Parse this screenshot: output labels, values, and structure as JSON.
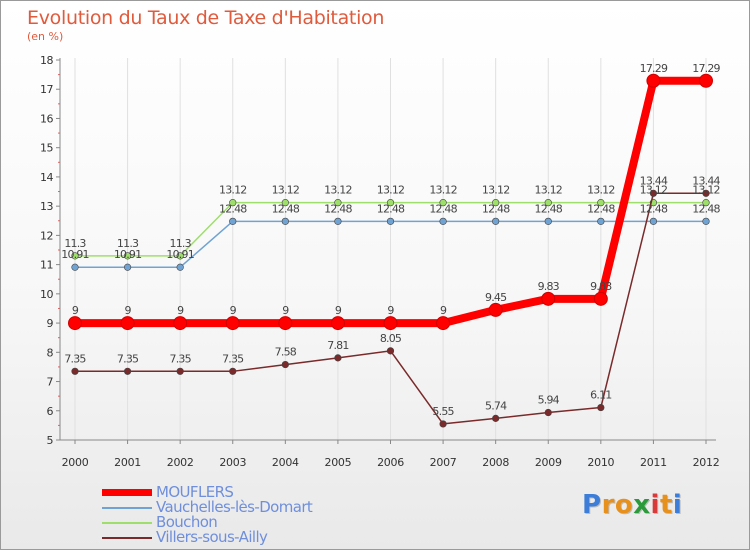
{
  "chart_data": {
    "type": "line",
    "title": "Evolution du Taux de Taxe d'Habitation",
    "subtitle": "(en %)",
    "x": [
      "2000",
      "2001",
      "2002",
      "2003",
      "2004",
      "2005",
      "2006",
      "2007",
      "2008",
      "2009",
      "2010",
      "2011",
      "2012"
    ],
    "ylim": [
      5,
      18
    ],
    "yticks": [
      5,
      6,
      7,
      8,
      9,
      10,
      11,
      12,
      13,
      14,
      15,
      16,
      17,
      18
    ],
    "series": [
      {
        "name": "MOUFLERS",
        "color": "#ff0000",
        "values": [
          9,
          9,
          9,
          9,
          9,
          9,
          9,
          9,
          9.45,
          9.83,
          9.83,
          17.29,
          17.29
        ],
        "labels": [
          "9",
          "9",
          "9",
          "9",
          "9",
          "9",
          "9",
          "9",
          "9.45",
          "9.83",
          "9.83",
          "17.29",
          "17.29"
        ]
      },
      {
        "name": "Vauchelles-lès-Domart",
        "color": "#6fa3d3",
        "values": [
          10.91,
          10.91,
          10.91,
          12.48,
          12.48,
          12.48,
          12.48,
          12.48,
          12.48,
          12.48,
          12.48,
          12.48,
          12.48
        ],
        "labels": [
          "10.91",
          "10.91",
          "10.91",
          "12.48",
          "12.48",
          "12.48",
          "12.48",
          "12.48",
          "12.48",
          "12.48",
          "12.48",
          "12.48",
          "12.48"
        ]
      },
      {
        "name": "Bouchon",
        "color": "#9ede6a",
        "values": [
          11.3,
          11.3,
          11.3,
          13.12,
          13.12,
          13.12,
          13.12,
          13.12,
          13.12,
          13.12,
          13.12,
          13.12,
          13.12
        ],
        "labels": [
          "11.3",
          "11.3",
          "11.3",
          "13.12",
          "13.12",
          "13.12",
          "13.12",
          "13.12",
          "13.12",
          "13.12",
          "13.12",
          "13.12",
          "13.12"
        ]
      },
      {
        "name": "Villers-sous-Ailly",
        "color": "#7a2a2a",
        "values": [
          7.35,
          7.35,
          7.35,
          7.35,
          7.58,
          7.81,
          8.05,
          5.55,
          5.74,
          5.94,
          6.11,
          13.44,
          13.44
        ],
        "labels": [
          "7.35",
          "7.35",
          "7.35",
          "7.35",
          "7.58",
          "7.81",
          "8.05",
          "5.55",
          "5.74",
          "5.94",
          "6.11",
          "13.44",
          "13.44"
        ]
      }
    ],
    "legend_position": "bottom-left"
  },
  "brand": {
    "letters": [
      "P",
      "r",
      "o",
      "x",
      "i",
      "t",
      "i"
    ],
    "colors": [
      "#3b7dd8",
      "#e8901c",
      "#e8901c",
      "#2a9a3a",
      "#d83a3a",
      "#e8901c",
      "#3b7dd8"
    ]
  }
}
